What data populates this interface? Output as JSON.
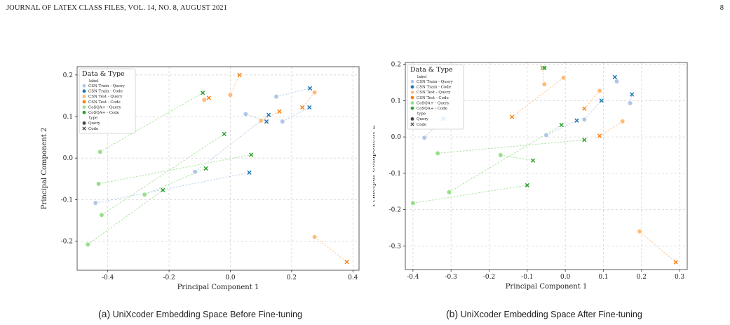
{
  "header": {
    "journal": "JOURNAL OF LATEX CLASS FILES, VOL. 14, NO. 8, AUGUST 2021",
    "page_number": "8"
  },
  "legend": {
    "title": "Data & Type",
    "label_heading": "label",
    "type_heading": "type",
    "query_label": "Query",
    "code_label": "Code"
  },
  "colors": {
    "CSN Train - Query": "#aec7e8",
    "CSN Train - Code": "#1f77b4",
    "CSN Test - Query": "#ffbb78",
    "CSN Test - Code": "#ff7f0e",
    "CoSQA+ - Query": "#98df8a",
    "CoSQA+ - Code": "#2ca02c"
  },
  "chart_data": [
    {
      "type": "scatter",
      "xlabel": "Principal Component 1",
      "ylabel": "Principal Component 2",
      "xlim": [
        -0.5,
        0.42
      ],
      "ylim": [
        -0.27,
        0.22
      ],
      "xticks": [
        -0.4,
        -0.2,
        0.0,
        0.2,
        0.4
      ],
      "xtick_labels": [
        "-0.4",
        "-0.2",
        "0.0",
        "0.2",
        "0.4"
      ],
      "yticks": [
        -0.2,
        -0.1,
        0.0,
        0.1,
        0.2
      ],
      "ytick_labels": [
        "-0.2",
        "-0.1",
        "0.0",
        "0.1",
        "0.2"
      ],
      "grid": true,
      "legend_position": "top-left",
      "caption_label": "(a)",
      "caption_text": "UniXcoder Embedding Space Before Fine-tuning",
      "series": [
        {
          "name": "CSN Train - Query",
          "pair": "CSN Train",
          "type": "Query",
          "points": [
            [
              -0.44,
              -0.108
            ],
            [
              -0.115,
              -0.033
            ],
            [
              0.05,
              0.106
            ],
            [
              0.15,
              0.148
            ],
            [
              0.17,
              0.088
            ]
          ]
        },
        {
          "name": "CSN Train - Code",
          "pair": "CSN Train",
          "type": "Code",
          "points": [
            [
              0.062,
              -0.035
            ],
            [
              0.125,
              0.104
            ],
            [
              0.118,
              0.088
            ],
            [
              0.26,
              0.168
            ],
            [
              0.258,
              0.122
            ]
          ]
        },
        {
          "name": "CSN Test - Query",
          "pair": "CSN Test",
          "type": "Query",
          "points": [
            [
              -0.085,
              0.14
            ],
            [
              0.0,
              0.152
            ],
            [
              0.1,
              0.09
            ],
            [
              0.275,
              0.158
            ],
            [
              0.275,
              -0.19
            ]
          ]
        },
        {
          "name": "CSN Test - Code",
          "pair": "CSN Test",
          "type": "Code",
          "points": [
            [
              -0.07,
              0.145
            ],
            [
              0.03,
              0.2
            ],
            [
              0.16,
              0.112
            ],
            [
              0.235,
              0.122
            ],
            [
              0.38,
              -0.25
            ]
          ]
        },
        {
          "name": "CoSQA+ - Query",
          "pair": "CoSQA+",
          "type": "Query",
          "points": [
            [
              -0.425,
              0.015
            ],
            [
              -0.43,
              -0.062
            ],
            [
              -0.28,
              -0.088
            ],
            [
              -0.42,
              -0.137
            ],
            [
              -0.465,
              -0.208
            ]
          ]
        },
        {
          "name": "CoSQA+ - Code",
          "pair": "CoSQA+",
          "type": "Code",
          "points": [
            [
              -0.09,
              0.157
            ],
            [
              0.068,
              0.008
            ],
            [
              -0.08,
              -0.025
            ],
            [
              -0.02,
              0.058
            ],
            [
              -0.22,
              -0.077
            ]
          ]
        }
      ]
    },
    {
      "type": "scatter",
      "xlabel": "Principal Component 1",
      "ylabel": "Principal Component 2",
      "xlim": [
        -0.42,
        0.32
      ],
      "ylim": [
        -0.365,
        0.205
      ],
      "xticks": [
        -0.4,
        -0.3,
        -0.2,
        -0.1,
        0.0,
        0.1,
        0.2,
        0.3
      ],
      "xtick_labels": [
        "-0.4",
        "-0.3",
        "-0.2",
        "-0.1",
        "0.0",
        "0.1",
        "0.2",
        "0.3"
      ],
      "yticks": [
        -0.3,
        -0.2,
        -0.1,
        0.0,
        0.1,
        0.2
      ],
      "ytick_labels": [
        "-0.3",
        "-0.2",
        "-0.1",
        "0.0",
        "0.1",
        "0.2"
      ],
      "grid": true,
      "legend_position": "top-left",
      "caption_label": "(b)",
      "caption_text": "UniXcoder Embedding Space After Fine-tuning",
      "series": [
        {
          "name": "CSN Train - Query",
          "pair": "CSN Train",
          "type": "Query",
          "points": [
            [
              -0.37,
              -0.002
            ],
            [
              -0.05,
              0.005
            ],
            [
              0.05,
              0.048
            ],
            [
              0.135,
              0.153
            ],
            [
              0.17,
              0.093
            ]
          ]
        },
        {
          "name": "CSN Train - Code",
          "pair": "CSN Train",
          "type": "Code",
          "points": [
            [
              -0.32,
              0.05
            ],
            [
              0.03,
              0.045
            ],
            [
              0.095,
              0.1
            ],
            [
              0.13,
              0.165
            ],
            [
              0.175,
              0.117
            ]
          ]
        },
        {
          "name": "CSN Test - Query",
          "pair": "CSN Test",
          "type": "Query",
          "points": [
            [
              -0.055,
              0.145
            ],
            [
              -0.005,
              0.163
            ],
            [
              0.09,
              0.127
            ],
            [
              0.15,
              0.043
            ],
            [
              0.195,
              -0.26
            ]
          ]
        },
        {
          "name": "CSN Test - Code",
          "pair": "CSN Test",
          "type": "Code",
          "points": [
            [
              -0.06,
              0.19
            ],
            [
              -0.14,
              0.055
            ],
            [
              0.05,
              0.078
            ],
            [
              0.09,
              0.003
            ],
            [
              0.29,
              -0.345
            ]
          ]
        },
        {
          "name": "CoSQA+ - Query",
          "pair": "CoSQA+",
          "type": "Query",
          "points": [
            [
              -0.055,
              0.19
            ],
            [
              -0.335,
              -0.045
            ],
            [
              -0.17,
              -0.05
            ],
            [
              -0.305,
              -0.152
            ],
            [
              -0.4,
              -0.182
            ]
          ]
        },
        {
          "name": "CoSQA+ - Code",
          "pair": "CoSQA+",
          "type": "Code",
          "points": [
            [
              -0.055,
              0.19
            ],
            [
              0.05,
              -0.008
            ],
            [
              -0.085,
              -0.065
            ],
            [
              -0.01,
              0.033
            ],
            [
              -0.1,
              -0.133
            ]
          ]
        }
      ]
    }
  ]
}
